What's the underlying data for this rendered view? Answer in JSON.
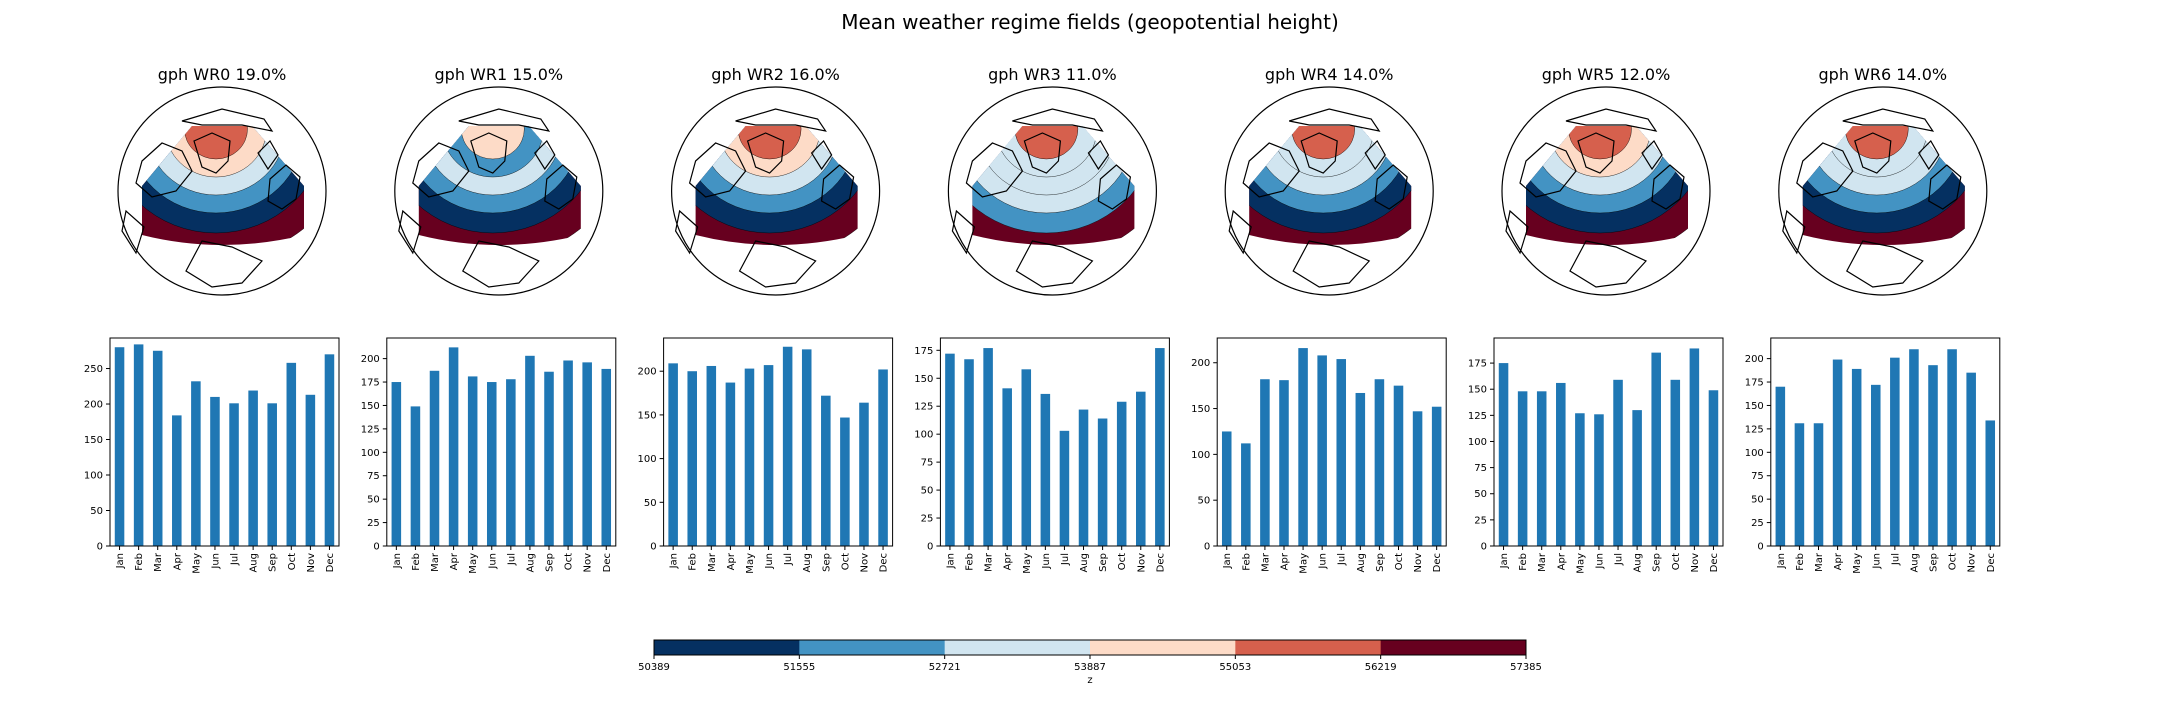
{
  "title": "Mean weather regime fields (geopotential height)",
  "months": [
    "Jan",
    "Feb",
    "Mar",
    "Apr",
    "May",
    "Jun",
    "Jul",
    "Aug",
    "Sep",
    "Oct",
    "Nov",
    "Dec"
  ],
  "palette": [
    "#053061",
    "#4393c3",
    "#d1e5f0",
    "#fddbc7",
    "#d6604d",
    "#67001f"
  ],
  "bar_color": "#1f77b4",
  "panels": [
    {
      "title": "gph WR0 19.0%",
      "levels": [
        4,
        3,
        2,
        1,
        0,
        5
      ]
    },
    {
      "title": "gph WR1 15.0%",
      "levels": [
        3,
        1,
        2,
        1,
        0,
        5
      ]
    },
    {
      "title": "gph WR2 16.0%",
      "levels": [
        4,
        3,
        2,
        1,
        0,
        5
      ]
    },
    {
      "title": "gph WR3 11.0%",
      "levels": [
        4,
        2,
        2,
        2,
        1,
        5
      ]
    },
    {
      "title": "gph WR4 14.0%",
      "levels": [
        4,
        2,
        2,
        1,
        0,
        5
      ]
    },
    {
      "title": "gph WR5 12.0%",
      "levels": [
        4,
        3,
        2,
        1,
        0,
        5
      ]
    },
    {
      "title": "gph WR6 14.0%",
      "levels": [
        4,
        2,
        2,
        1,
        0,
        5
      ]
    }
  ],
  "chart_data": [
    {
      "type": "bar",
      "categories": [
        "Jan",
        "Feb",
        "Mar",
        "Apr",
        "May",
        "Jun",
        "Jul",
        "Aug",
        "Sep",
        "Oct",
        "Nov",
        "Dec"
      ],
      "values": [
        280,
        284,
        275,
        184,
        232,
        210,
        201,
        219,
        201,
        258,
        213,
        270
      ],
      "ylim": [
        0,
        293
      ],
      "yticks": [
        0,
        50,
        100,
        150,
        200,
        250
      ]
    },
    {
      "type": "bar",
      "categories": [
        "Jan",
        "Feb",
        "Mar",
        "Apr",
        "May",
        "Jun",
        "Jul",
        "Aug",
        "Sep",
        "Oct",
        "Nov",
        "Dec"
      ],
      "values": [
        175,
        149,
        187,
        212,
        181,
        175,
        178,
        203,
        186,
        198,
        196,
        189
      ],
      "ylim": [
        0,
        222
      ],
      "yticks": [
        0,
        25,
        50,
        75,
        100,
        125,
        150,
        175,
        200
      ]
    },
    {
      "type": "bar",
      "categories": [
        "Jan",
        "Feb",
        "Mar",
        "Apr",
        "May",
        "Jun",
        "Jul",
        "Aug",
        "Sep",
        "Oct",
        "Nov",
        "Dec"
      ],
      "values": [
        209,
        200,
        206,
        187,
        203,
        207,
        228,
        225,
        172,
        147,
        164,
        202
      ],
      "ylim": [
        0,
        238
      ],
      "yticks": [
        0,
        50,
        100,
        150,
        200
      ]
    },
    {
      "type": "bar",
      "categories": [
        "Jan",
        "Feb",
        "Mar",
        "Apr",
        "May",
        "Jun",
        "Jul",
        "Aug",
        "Sep",
        "Oct",
        "Nov",
        "Dec"
      ],
      "values": [
        172,
        167,
        177,
        141,
        158,
        136,
        103,
        122,
        114,
        129,
        138,
        177
      ],
      "ylim": [
        0,
        186
      ],
      "yticks": [
        0,
        25,
        50,
        75,
        100,
        125,
        150,
        175
      ]
    },
    {
      "type": "bar",
      "categories": [
        "Jan",
        "Feb",
        "Mar",
        "Apr",
        "May",
        "Jun",
        "Jul",
        "Aug",
        "Sep",
        "Oct",
        "Nov",
        "Dec"
      ],
      "values": [
        125,
        112,
        182,
        181,
        216,
        208,
        204,
        167,
        182,
        175,
        147,
        152
      ],
      "ylim": [
        0,
        227
      ],
      "yticks": [
        0,
        50,
        100,
        150,
        200
      ]
    },
    {
      "type": "bar",
      "categories": [
        "Jan",
        "Feb",
        "Mar",
        "Apr",
        "May",
        "Jun",
        "Jul",
        "Aug",
        "Sep",
        "Oct",
        "Nov",
        "Dec"
      ],
      "values": [
        175,
        148,
        148,
        156,
        127,
        126,
        159,
        130,
        185,
        159,
        189,
        149
      ],
      "ylim": [
        0,
        199
      ],
      "yticks": [
        0,
        25,
        50,
        75,
        100,
        125,
        150,
        175
      ]
    },
    {
      "type": "bar",
      "categories": [
        "Jan",
        "Feb",
        "Mar",
        "Apr",
        "May",
        "Jun",
        "Jul",
        "Aug",
        "Sep",
        "Oct",
        "Nov",
        "Dec"
      ],
      "values": [
        170,
        131,
        131,
        199,
        189,
        172,
        201,
        210,
        193,
        210,
        185,
        134
      ],
      "ylim": [
        0,
        222
      ],
      "yticks": [
        0,
        25,
        50,
        75,
        100,
        125,
        150,
        175,
        200
      ]
    }
  ],
  "colorbar": {
    "ticks": [
      "50389",
      "51555",
      "52721",
      "53887",
      "55053",
      "56219",
      "57385"
    ],
    "label": "z"
  }
}
